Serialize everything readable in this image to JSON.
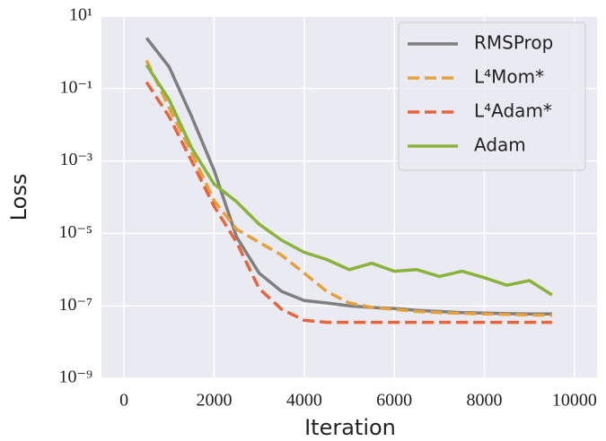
{
  "chart_data": {
    "type": "line",
    "x_label": "Iteration",
    "y_label": "Loss",
    "x": [
      500,
      1000,
      1500,
      2000,
      2500,
      3000,
      3500,
      4000,
      4500,
      5000,
      5500,
      6000,
      6500,
      7000,
      7500,
      8000,
      8500,
      9000,
      9500
    ],
    "series": [
      {
        "name": "RMSProp",
        "color": "#7f7f7f",
        "dash": "solid",
        "values": [
          2.5,
          0.4,
          0.017,
          0.00055,
          8e-06,
          8e-07,
          2.5e-07,
          1.4e-07,
          1.2e-07,
          1e-07,
          9e-08,
          8.5e-08,
          7.5e-08,
          7e-08,
          6.5e-08,
          6.3e-08,
          6.1e-08,
          6e-08,
          6e-08
        ]
      },
      {
        "name": "L⁴Mom*",
        "color": "#e5a13a",
        "dash": "dashed",
        "values": [
          0.6,
          0.03,
          0.0017,
          8e-05,
          1.3e-05,
          5.7e-06,
          2.5e-06,
          8e-07,
          2.5e-07,
          1.2e-07,
          9e-08,
          8e-08,
          7e-08,
          6.5e-08,
          6.2e-08,
          6e-08,
          5.8e-08,
          5.6e-08,
          5.5e-08
        ]
      },
      {
        "name": "L⁴Adam*",
        "color": "#e8653c",
        "dash": "dashed",
        "values": [
          0.15,
          0.017,
          0.001,
          5.6e-05,
          5.7e-06,
          3e-07,
          8e-08,
          4e-08,
          3.5e-08,
          3.5e-08,
          3.5e-08,
          3.5e-08,
          3.5e-08,
          3.5e-08,
          3.5e-08,
          3.5e-08,
          3.5e-08,
          3.5e-08,
          3.5e-08
        ]
      },
      {
        "name": "Adam",
        "color": "#8ab33a",
        "dash": "solid",
        "values": [
          0.45,
          0.05,
          0.0023,
          0.00023,
          7.5e-05,
          1.8e-05,
          6.5e-06,
          3e-06,
          1.9e-06,
          1e-06,
          1.5e-06,
          9e-07,
          1e-06,
          6.5e-07,
          9e-07,
          6e-07,
          3.7e-07,
          5e-07,
          2e-07
        ]
      }
    ],
    "xlim": [
      -500,
      10500
    ],
    "xticks": [
      0,
      2000,
      4000,
      6000,
      8000,
      10000
    ],
    "ylim": [
      1e-09,
      10
    ],
    "log_y": true,
    "yticks": [
      {
        "value": 1e-09,
        "label": "10⁻⁹"
      },
      {
        "value": 1e-07,
        "label": "10⁻⁷"
      },
      {
        "value": 1e-05,
        "label": "10⁻⁵"
      },
      {
        "value": 0.001,
        "label": "10⁻³"
      },
      {
        "value": 0.1,
        "label": "10⁻¹"
      },
      {
        "value": 10,
        "label": "10¹"
      }
    ],
    "grid": true,
    "legend": "upper right"
  }
}
